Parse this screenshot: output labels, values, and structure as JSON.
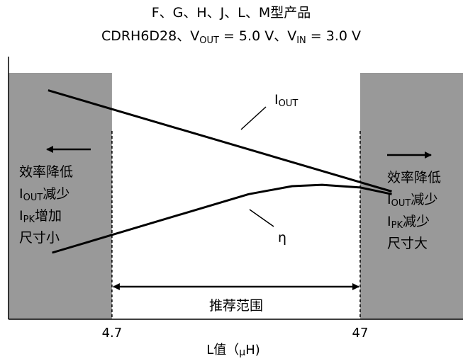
{
  "chart_data": {
    "type": "line",
    "title_line1": "F、G、H、J、L、M型产品",
    "title_line2": {
      "prefix": "CDRH6D28、V",
      "vout_sub": "OUT",
      "vout_rest": " = 5.0 V、V",
      "vin_sub": "IN",
      "vin_rest": " = 3.0 V"
    },
    "xlabel": {
      "prefix": "L值（",
      "mu": "μ",
      "suffix": "H)"
    },
    "x_scale": "log",
    "xlim": [
      1.8,
      122
    ],
    "ylim": [
      0,
      100
    ],
    "x_ticks": [
      {
        "value": 4.7,
        "label": "4.7"
      },
      {
        "value": 47,
        "label": "47"
      }
    ],
    "recommended_range": {
      "from": 4.7,
      "to": 47,
      "label": "推荐范围"
    },
    "shaded_regions": [
      {
        "from": 1.8,
        "to": 4.7,
        "color": "#999999"
      },
      {
        "from": 47,
        "to": 122,
        "color": "#999999"
      }
    ],
    "series": [
      {
        "name": "I_OUT",
        "label_main": "I",
        "label_sub": "OUT",
        "points": [
          [
            2.6,
            86
          ],
          [
            63,
            48
          ]
        ]
      },
      {
        "name": "η",
        "label_main": "η",
        "points": [
          [
            2.7,
            25
          ],
          [
            16.7,
            47
          ],
          [
            25,
            50
          ],
          [
            33,
            50.5
          ],
          [
            47,
            49.5
          ],
          [
            63,
            47
          ]
        ]
      }
    ],
    "left_annotation": {
      "arrow": "left",
      "lines": [
        {
          "main": "效率降低"
        },
        {
          "pre": "I",
          "sub": "OUT",
          "post": "减少"
        },
        {
          "pre": "I",
          "sub": "PK",
          "post": "增加"
        },
        {
          "main": "尺寸小"
        }
      ]
    },
    "right_annotation": {
      "arrow": "right",
      "lines": [
        {
          "main": "效率降低"
        },
        {
          "pre": "I",
          "sub": "OUT",
          "post": "减少"
        },
        {
          "pre": "I",
          "sub": "PK",
          "post": "减少"
        },
        {
          "main": "尺寸大"
        }
      ]
    },
    "colors": {
      "shade": "#999999",
      "line": "#000000",
      "background": "#ffffff"
    },
    "grid": false
  }
}
